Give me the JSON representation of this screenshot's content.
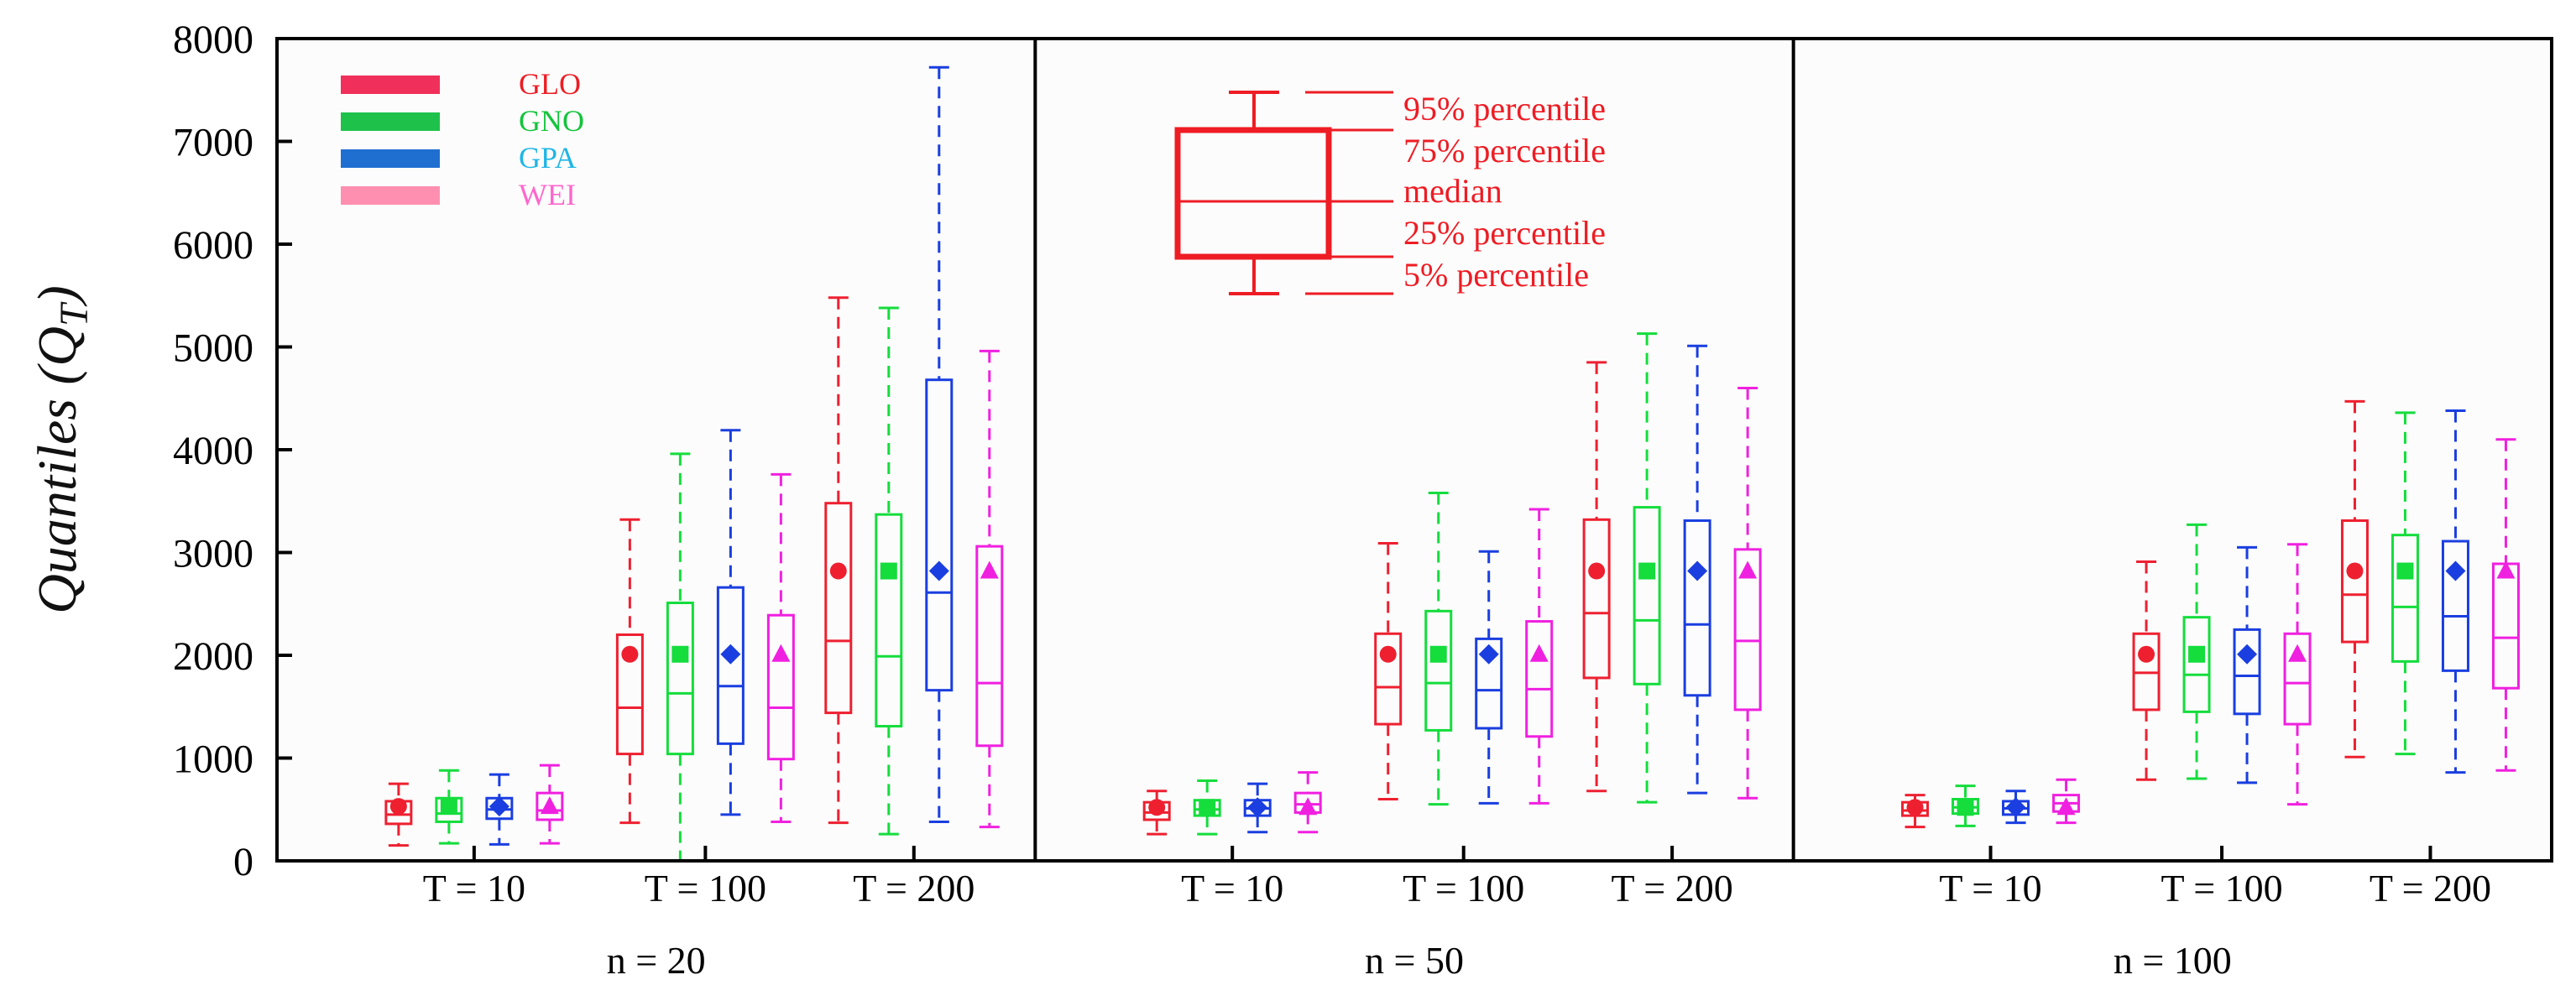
{
  "chart_data": {
    "type": "boxplot",
    "ylabel": "Quantiles (Q",
    "ylabel_sub": "T",
    "ylabel_close": ")",
    "ylim": [
      0,
      8000
    ],
    "yticks": [
      0,
      1000,
      2000,
      3000,
      4000,
      5000,
      6000,
      7000,
      8000
    ],
    "distributions": [
      {
        "name": "GLO",
        "color": "#ee2030",
        "marker": "circle"
      },
      {
        "name": "GNO",
        "color": "#14dd3c",
        "marker": "square"
      },
      {
        "name": "GPA",
        "color": "#1a3ee0",
        "marker": "diamond"
      },
      {
        "name": "WEI",
        "color": "#f020e0",
        "marker": "triangle"
      }
    ],
    "legend": {
      "placement": "top-left",
      "entries": [
        {
          "name": "GLO",
          "bar_color": "#f0305a",
          "text_color": "#ee1c24"
        },
        {
          "name": "GNO",
          "bar_color": "#1ec24a",
          "text_color": "#13c43b"
        },
        {
          "name": "GPA",
          "bar_color": "#1f6fd1",
          "text_color": "#1fb6e6"
        },
        {
          "name": "WEI",
          "bar_color": "#ff8fb0",
          "text_color": "#ff66cc"
        }
      ]
    },
    "box_key": {
      "color": "#ee1c24",
      "labels": [
        "95% percentile",
        "75% percentile",
        "median",
        "25% percentile",
        "5% percentile"
      ]
    },
    "panels": [
      {
        "label": "n = 20",
        "groups": [
          {
            "label": "T = 10",
            "true_value": 530,
            "boxes": [
              {
                "p5": 150,
                "q1": 360,
                "median": 450,
                "q3": 580,
                "p95": 750
              },
              {
                "p5": 170,
                "q1": 380,
                "median": 460,
                "q3": 610,
                "p95": 880
              },
              {
                "p5": 160,
                "q1": 410,
                "median": 500,
                "q3": 610,
                "p95": 840
              },
              {
                "p5": 170,
                "q1": 400,
                "median": 490,
                "q3": 660,
                "p95": 930
              }
            ]
          },
          {
            "label": "T = 100",
            "true_value": 2010,
            "boxes": [
              {
                "p5": 370,
                "q1": 1040,
                "median": 1490,
                "q3": 2200,
                "p95": 3320
              },
              {
                "p5": 0,
                "q1": 1040,
                "median": 1630,
                "q3": 2510,
                "p95": 3960
              },
              {
                "p5": 450,
                "q1": 1140,
                "median": 1700,
                "q3": 2660,
                "p95": 4190
              },
              {
                "p5": 380,
                "q1": 990,
                "median": 1490,
                "q3": 2390,
                "p95": 3760
              }
            ]
          },
          {
            "label": "T = 200",
            "true_value": 2820,
            "boxes": [
              {
                "p5": 370,
                "q1": 1440,
                "median": 2140,
                "q3": 3480,
                "p95": 5480
              },
              {
                "p5": 260,
                "q1": 1310,
                "median": 1990,
                "q3": 3370,
                "p95": 5380
              },
              {
                "p5": 380,
                "q1": 1660,
                "median": 2610,
                "q3": 4680,
                "p95": 7720
              },
              {
                "p5": 330,
                "q1": 1120,
                "median": 1730,
                "q3": 3060,
                "p95": 4960
              }
            ]
          }
        ]
      },
      {
        "label": "n = 50",
        "groups": [
          {
            "label": "T = 10",
            "true_value": 520,
            "boxes": [
              {
                "p5": 260,
                "q1": 400,
                "median": 470,
                "q3": 570,
                "p95": 680
              },
              {
                "p5": 260,
                "q1": 440,
                "median": 500,
                "q3": 590,
                "p95": 780
              },
              {
                "p5": 280,
                "q1": 440,
                "median": 510,
                "q3": 590,
                "p95": 750
              },
              {
                "p5": 280,
                "q1": 470,
                "median": 550,
                "q3": 660,
                "p95": 860
              }
            ]
          },
          {
            "label": "T = 100",
            "true_value": 2010,
            "boxes": [
              {
                "p5": 600,
                "q1": 1330,
                "median": 1690,
                "q3": 2210,
                "p95": 3090
              },
              {
                "p5": 550,
                "q1": 1270,
                "median": 1730,
                "q3": 2430,
                "p95": 3580
              },
              {
                "p5": 560,
                "q1": 1290,
                "median": 1660,
                "q3": 2160,
                "p95": 3010
              },
              {
                "p5": 560,
                "q1": 1210,
                "median": 1670,
                "q3": 2330,
                "p95": 3420
              }
            ]
          },
          {
            "label": "T = 200",
            "true_value": 2820,
            "boxes": [
              {
                "p5": 680,
                "q1": 1780,
                "median": 2410,
                "q3": 3320,
                "p95": 4850
              },
              {
                "p5": 570,
                "q1": 1720,
                "median": 2340,
                "q3": 3440,
                "p95": 5130
              },
              {
                "p5": 660,
                "q1": 1610,
                "median": 2300,
                "q3": 3310,
                "p95": 5010
              },
              {
                "p5": 610,
                "q1": 1470,
                "median": 2140,
                "q3": 3030,
                "p95": 4600
              }
            ]
          }
        ]
      },
      {
        "label": "n = 100",
        "groups": [
          {
            "label": "T = 10",
            "true_value": 520,
            "boxes": [
              {
                "p5": 330,
                "q1": 440,
                "median": 490,
                "q3": 570,
                "p95": 640
              },
              {
                "p5": 340,
                "q1": 460,
                "median": 520,
                "q3": 600,
                "p95": 730
              },
              {
                "p5": 370,
                "q1": 450,
                "median": 510,
                "q3": 580,
                "p95": 680
              },
              {
                "p5": 370,
                "q1": 480,
                "median": 560,
                "q3": 640,
                "p95": 790
              }
            ]
          },
          {
            "label": "T = 100",
            "true_value": 2010,
            "boxes": [
              {
                "p5": 790,
                "q1": 1470,
                "median": 1830,
                "q3": 2210,
                "p95": 2910
              },
              {
                "p5": 800,
                "q1": 1450,
                "median": 1810,
                "q3": 2370,
                "p95": 3270
              },
              {
                "p5": 760,
                "q1": 1430,
                "median": 1800,
                "q3": 2250,
                "p95": 3050
              },
              {
                "p5": 550,
                "q1": 1330,
                "median": 1730,
                "q3": 2210,
                "p95": 3080
              }
            ]
          },
          {
            "label": "T = 200",
            "true_value": 2820,
            "boxes": [
              {
                "p5": 1010,
                "q1": 2130,
                "median": 2590,
                "q3": 3310,
                "p95": 4470
              },
              {
                "p5": 1040,
                "q1": 1940,
                "median": 2470,
                "q3": 3170,
                "p95": 4360
              },
              {
                "p5": 860,
                "q1": 1850,
                "median": 2380,
                "q3": 3110,
                "p95": 4380
              },
              {
                "p5": 880,
                "q1": 1680,
                "median": 2170,
                "q3": 2890,
                "p95": 4100
              }
            ]
          }
        ]
      }
    ]
  }
}
